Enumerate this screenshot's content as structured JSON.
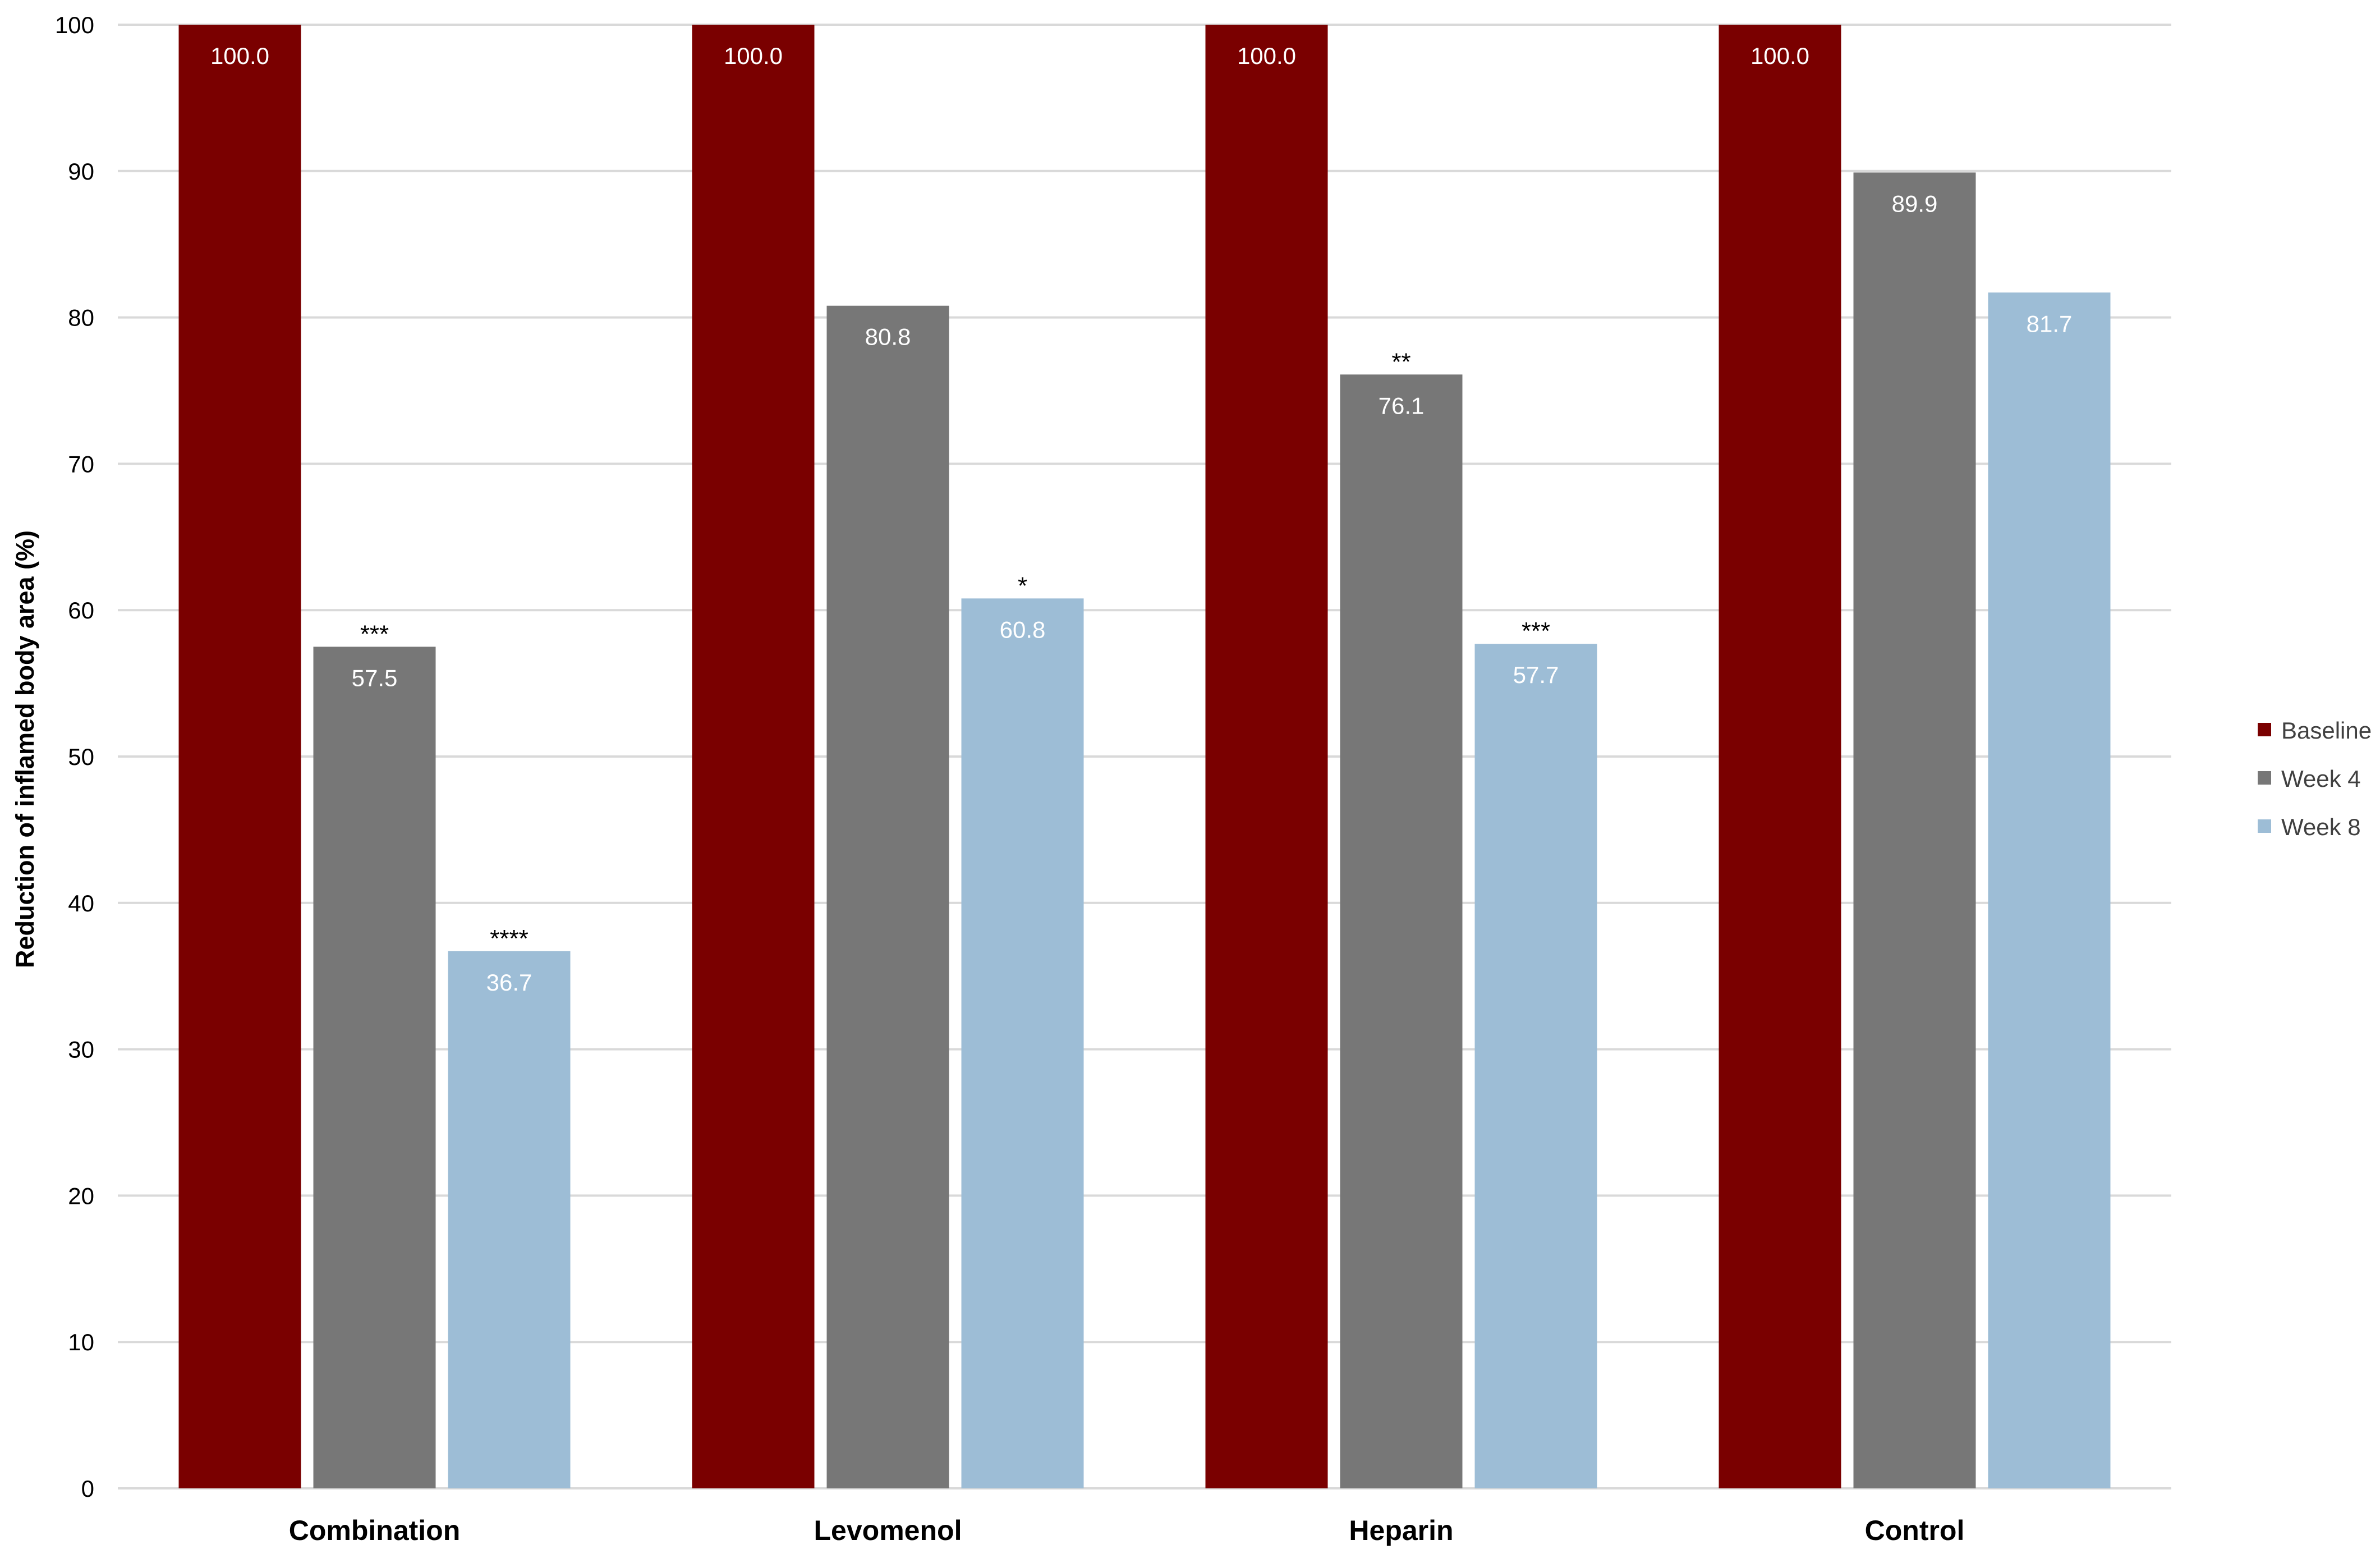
{
  "chart_data": {
    "type": "bar",
    "categories": [
      "Combination",
      "Levomenol",
      "Heparin",
      "Control"
    ],
    "series": [
      {
        "name": "Baseline",
        "color": "#7a0000",
        "values": [
          100.0,
          100.0,
          100.0,
          100.0
        ],
        "labels": [
          "100.0",
          "100.0",
          "100.0",
          "100.0"
        ],
        "significance": [
          "",
          "",
          "",
          ""
        ]
      },
      {
        "name": "Week 4",
        "color": "#777777",
        "values": [
          57.5,
          80.8,
          76.1,
          89.9
        ],
        "labels": [
          "57.5",
          "80.8",
          "76.1",
          "89.9"
        ],
        "significance": [
          "***",
          "",
          "**",
          ""
        ]
      },
      {
        "name": "Week 8",
        "color": "#9dbdd6",
        "values": [
          36.7,
          60.8,
          57.7,
          81.7
        ],
        "labels": [
          "36.7",
          "60.8",
          "57.7",
          "81.7"
        ],
        "significance": [
          "****",
          "*",
          "***",
          ""
        ]
      }
    ],
    "title": "",
    "xlabel": "",
    "ylabel": "Reduction of inflamed body area (%)",
    "ylim": [
      0,
      100
    ],
    "yticks": [
      0,
      10,
      20,
      30,
      40,
      50,
      60,
      70,
      80,
      90,
      100
    ],
    "grid": true,
    "legend": "right",
    "colors": {
      "grid": "#d9d9d9",
      "axis_text": "#000000",
      "value_label": "#ffffff"
    }
  }
}
